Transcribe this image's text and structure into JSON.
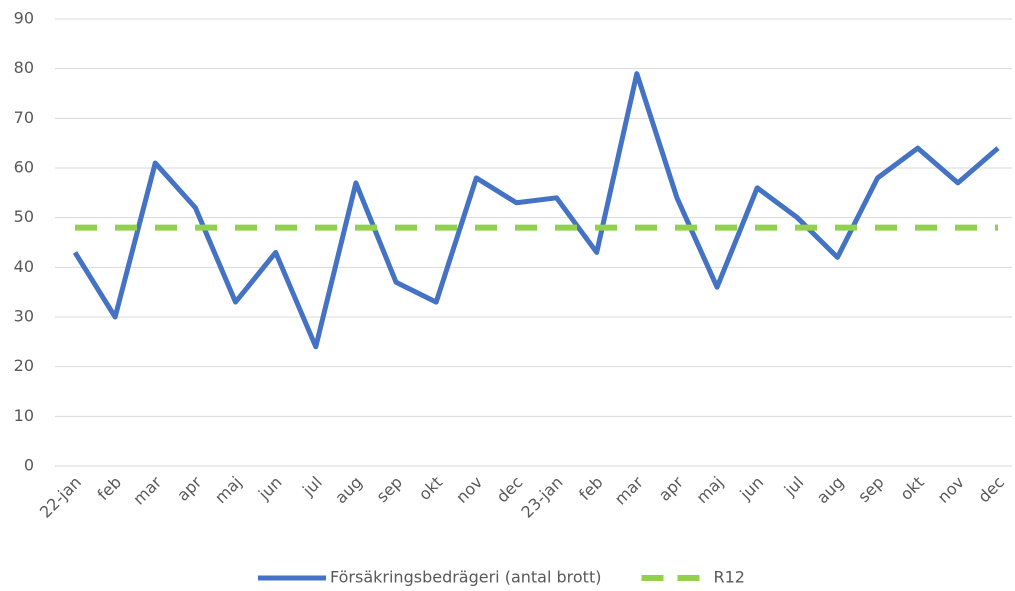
{
  "chart_data": {
    "type": "line",
    "categories": [
      "22-jan",
      "feb",
      "mar",
      "apr",
      "maj",
      "jun",
      "jul",
      "aug",
      "sep",
      "okt",
      "nov",
      "dec",
      "23-jan",
      "feb",
      "mar",
      "apr",
      "maj",
      "jun",
      "jul",
      "aug",
      "sep",
      "okt",
      "nov",
      "dec"
    ],
    "series": [
      {
        "name": "Försäkringsbedrägeri (antal brott)",
        "color": "#4472c4",
        "dashed": false,
        "values": [
          43,
          30,
          61,
          52,
          33,
          43,
          24,
          57,
          37,
          33,
          58,
          53,
          54,
          43,
          79,
          54,
          36,
          56,
          50,
          42,
          58,
          64,
          57,
          64
        ]
      },
      {
        "name": "R12",
        "color": "#92d050",
        "dashed": true,
        "values": [
          48,
          48,
          48,
          48,
          48,
          48,
          48,
          48,
          48,
          48,
          48,
          48,
          48,
          48,
          48,
          48,
          48,
          48,
          48,
          48,
          48,
          48,
          48,
          48
        ]
      }
    ],
    "ylim": [
      0,
      90
    ],
    "yticks": [
      0,
      10,
      20,
      30,
      40,
      50,
      60,
      70,
      80,
      90
    ],
    "grid": true,
    "legend": "bottom"
  }
}
